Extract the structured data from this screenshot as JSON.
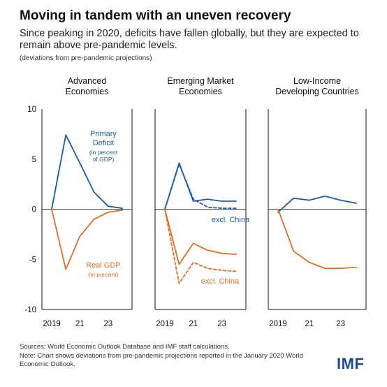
{
  "header": {
    "title": "Moving in tandem with an uneven recovery",
    "subtitle": "Since peaking in 2020, deficits have fallen globally, but they are expected to remain above pre-pandemic levels.",
    "note": "(deviations from pre-pandemic projections)"
  },
  "footer": {
    "sources": "Sources: World Economic Outlook Database and IMF staff calculations.",
    "note": "Note: Chart shows deviations from pre-pandemic projections reported in the January 2020 World Economic Outlook.",
    "logo": "IMF"
  },
  "colors": {
    "deficit": "#1f5a9c",
    "gdp": "#d9712c",
    "axis": "#111111"
  },
  "chart_data": {
    "type": "line",
    "title": "Moving in tandem with an uneven recovery",
    "ylim": [
      -10,
      10
    ],
    "yticks": [
      10,
      5,
      0,
      -5,
      -10
    ],
    "x": [
      2019,
      2020,
      2021,
      2022,
      2023,
      2024
    ],
    "xtick_values": [
      2019,
      2021,
      2023
    ],
    "xtick_labels": [
      "2019",
      "21",
      "23"
    ],
    "grid": false,
    "panels": [
      {
        "title_lines": [
          "Advanced",
          "Economies"
        ],
        "series": [
          {
            "name": "Primary Deficit",
            "color": "deficit",
            "dash": false,
            "values": [
              0,
              7.4,
              4.6,
              1.7,
              0.3,
              0.1
            ],
            "label_lines": [
              "Primary",
              "Deficit"
            ],
            "sublabel_lines": [
              "(in percent",
              "of GDP)"
            ]
          },
          {
            "name": "Real GDP",
            "color": "gdp",
            "dash": false,
            "values": [
              0,
              -6.0,
              -2.7,
              -1.0,
              -0.3,
              -0.1
            ],
            "label_lines": [
              "Real GDP"
            ],
            "sublabel_lines": [
              "(in percent)"
            ]
          }
        ]
      },
      {
        "title_lines": [
          "Emerging Market",
          "Economies"
        ],
        "series": [
          {
            "name": "Primary Deficit",
            "color": "deficit",
            "dash": false,
            "values": [
              0,
              4.6,
              0.8,
              1.0,
              0.8,
              0.8
            ]
          },
          {
            "name": "excl. China",
            "color": "deficit",
            "dash": true,
            "values": [
              0,
              4.5,
              1.0,
              0.2,
              0.1,
              0.1
            ],
            "label_lines": [
              "excl. China"
            ]
          },
          {
            "name": "Real GDP",
            "color": "gdp",
            "dash": false,
            "values": [
              0,
              -5.5,
              -3.4,
              -4.1,
              -4.4,
              -4.5
            ]
          },
          {
            "name": "excl. China",
            "color": "gdp",
            "dash": true,
            "values": [
              0,
              -7.4,
              -5.3,
              -5.9,
              -6.1,
              -6.2
            ],
            "label_lines": [
              "excl. China"
            ]
          }
        ]
      },
      {
        "title_lines": [
          "Low-Income",
          "Developing Countries"
        ],
        "series": [
          {
            "name": "Primary Deficit",
            "color": "deficit",
            "dash": false,
            "values": [
              -0.3,
              1.1,
              0.9,
              1.3,
              0.9,
              0.6
            ]
          },
          {
            "name": "Real GDP",
            "color": "gdp",
            "dash": false,
            "values": [
              0,
              -4.2,
              -5.3,
              -5.9,
              -5.9,
              -5.8
            ]
          }
        ]
      }
    ]
  }
}
